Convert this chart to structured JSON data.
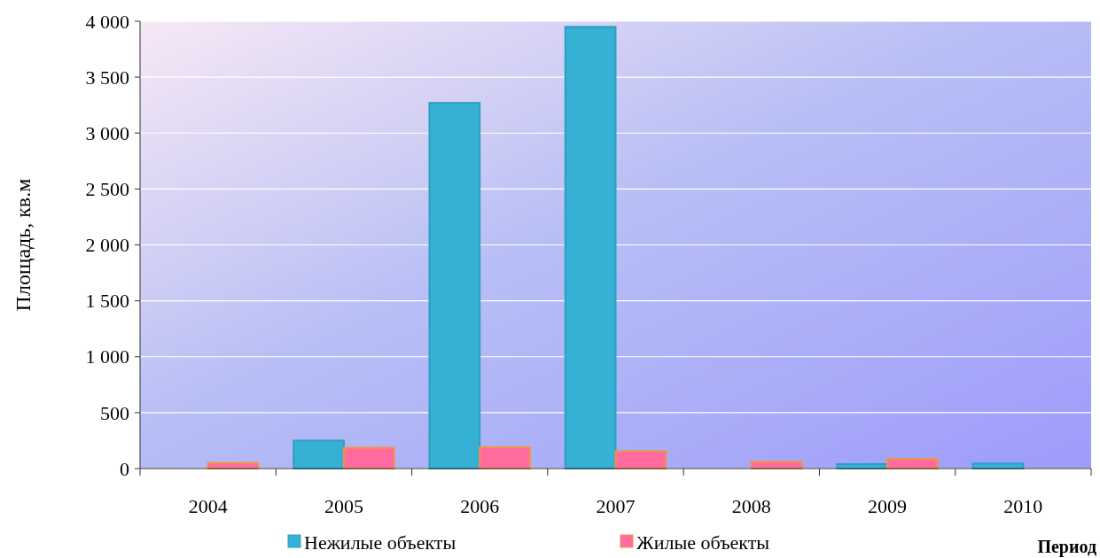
{
  "chart_data": {
    "type": "bar",
    "xlabel": "Период",
    "ylabel": "Площадь, кв.м",
    "categories": [
      "2004",
      "2005",
      "2006",
      "2007",
      "2008",
      "2009",
      "2010"
    ],
    "series": [
      {
        "name": "Нежилые объекты",
        "color": "#36b0d4",
        "values": [
          null,
          250,
          3270,
          3950,
          null,
          40,
          45
        ]
      },
      {
        "name": "Жилые объекты",
        "color": "#ff6b9e",
        "values": [
          50,
          185,
          190,
          155,
          60,
          85,
          null
        ]
      }
    ],
    "ylim": [
      0,
      4000
    ],
    "yticks": [
      {
        "value": 0,
        "label": "0"
      },
      {
        "value": 500,
        "label": "500"
      },
      {
        "value": 1000,
        "label": "1 000"
      },
      {
        "value": 1500,
        "label": "1 500"
      },
      {
        "value": 2000,
        "label": "2 000"
      },
      {
        "value": 2500,
        "label": "2 500"
      },
      {
        "value": 3000,
        "label": "3 000"
      },
      {
        "value": 3500,
        "label": "3 500"
      },
      {
        "value": 4000,
        "label": "4 000"
      }
    ],
    "grid": "y",
    "legend": "bottom"
  }
}
